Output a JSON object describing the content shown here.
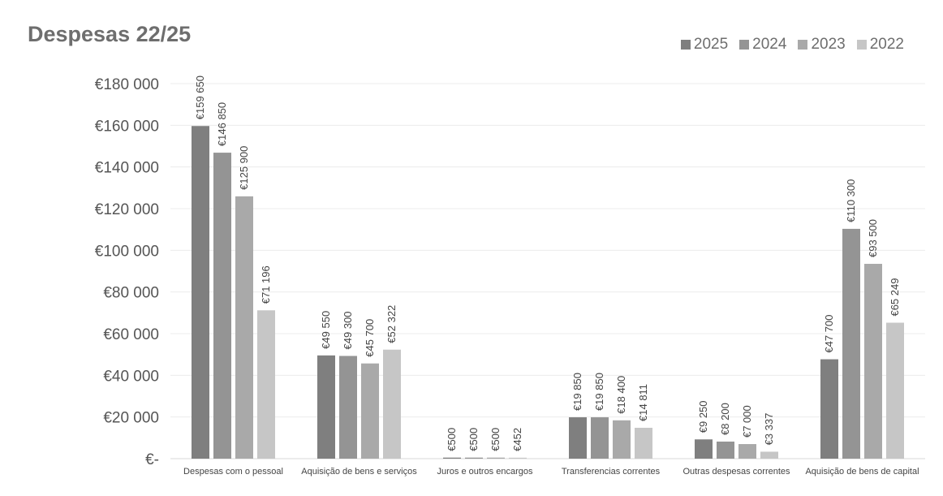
{
  "chart_data": {
    "type": "bar",
    "title": "Despesas 22/25",
    "xlabel": "",
    "ylabel": "",
    "ylim": [
      0,
      180000
    ],
    "y_ticks": [
      0,
      20000,
      40000,
      60000,
      80000,
      100000,
      120000,
      140000,
      160000,
      180000
    ],
    "y_tick_labels": [
      "€-",
      "€20 000",
      "€40 000",
      "€60 000",
      "€80 000",
      "€100 000",
      "€120 000",
      "€140 000",
      "€160 000",
      "€180 000"
    ],
    "grid": true,
    "legend_position": "top-right",
    "categories": [
      "Despesas com o pessoal",
      "Aquisição de bens e serviços",
      "Juros e outros encargos",
      "Transferencias correntes",
      "Outras despesas correntes",
      "Aquisição de bens de capital"
    ],
    "series": [
      {
        "name": "2025",
        "color": "#7f7f7f",
        "values": [
          159650,
          49550,
          500,
          19850,
          9250,
          47700
        ],
        "labels": [
          "€159 650",
          "€49 550",
          "€500",
          "€19 850",
          "€9 250",
          "€47 700"
        ]
      },
      {
        "name": "2024",
        "color": "#949494",
        "values": [
          146850,
          49300,
          500,
          19850,
          8200,
          110300
        ],
        "labels": [
          "€146 850",
          "€49 300",
          "€500",
          "€19 850",
          "€8 200",
          "€110 300"
        ]
      },
      {
        "name": "2023",
        "color": "#a9a9a9",
        "values": [
          125900,
          45700,
          500,
          18400,
          7000,
          93500
        ],
        "labels": [
          "€125 900",
          "€45 700",
          "€500",
          "€18 400",
          "€7 000",
          "€93 500"
        ]
      },
      {
        "name": "2022",
        "color": "#c6c6c6",
        "values": [
          71196,
          52322,
          452,
          14811,
          3337,
          65249
        ],
        "labels": [
          "€71 196",
          "€52 322",
          "€452",
          "€14 811",
          "€3 337",
          "€65 249"
        ]
      }
    ]
  }
}
